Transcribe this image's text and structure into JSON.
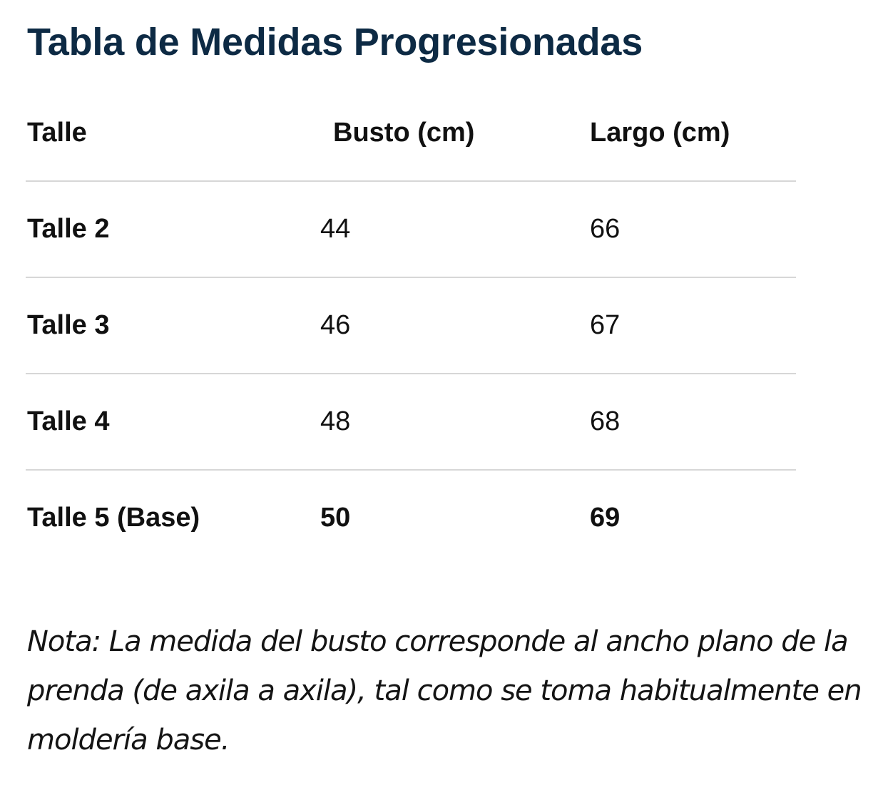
{
  "title": "Tabla de Medidas Progresionadas",
  "table": {
    "headers": [
      "Talle",
      "Busto (cm)",
      "Largo (cm)"
    ],
    "rows": [
      {
        "talle": "Talle 2",
        "busto": "44",
        "largo": "66"
      },
      {
        "talle": "Talle 3",
        "busto": "46",
        "largo": "67"
      },
      {
        "talle": "Talle 4",
        "busto": "48",
        "largo": "68"
      },
      {
        "talle": "Talle 5 (Base)",
        "busto": "50",
        "largo": "69"
      }
    ]
  },
  "note": "Nota: La medida del busto corresponde al ancho plano de la prenda (de axila a axila), tal como se toma habitualmente en moldería base."
}
